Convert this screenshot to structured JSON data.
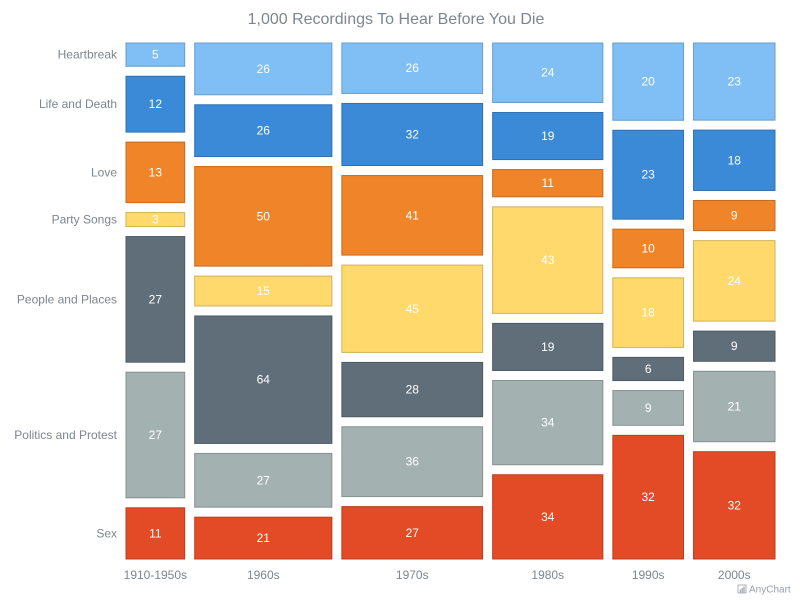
{
  "chart_data": {
    "type": "mekko",
    "title": "1,000 Recordings To Hear Before You Die",
    "categories": [
      "1910-1950s",
      "1960s",
      "1970s",
      "1980s",
      "1990s",
      "2000s"
    ],
    "series": [
      {
        "name": "Heartbreak",
        "values": [
          5,
          26,
          26,
          24,
          20,
          23
        ],
        "color": "#7fbff5"
      },
      {
        "name": "Life and Death",
        "values": [
          12,
          26,
          32,
          19,
          23,
          18
        ],
        "color": "#3b8ad8"
      },
      {
        "name": "Love",
        "values": [
          13,
          50,
          41,
          11,
          10,
          9
        ],
        "color": "#ef8428"
      },
      {
        "name": "Party Songs",
        "values": [
          3,
          15,
          45,
          43,
          18,
          24
        ],
        "color": "#ffd96b"
      },
      {
        "name": "People and Places",
        "values": [
          27,
          64,
          28,
          19,
          6,
          9
        ],
        "color": "#5f6e78"
      },
      {
        "name": "Politics and Protest",
        "values": [
          27,
          27,
          36,
          34,
          9,
          21
        ],
        "color": "#a3b1b1"
      },
      {
        "name": "Sex",
        "values": [
          11,
          21,
          27,
          34,
          32,
          32
        ],
        "color": "#e24b26"
      }
    ],
    "credit": "AnyChart"
  }
}
